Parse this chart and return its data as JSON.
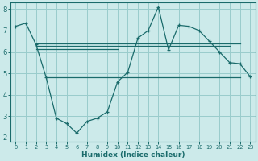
{
  "xlabel": "Humidex (Indice chaleur)",
  "bg_color": "#cceaea",
  "line_color": "#1a6b6b",
  "grid_color": "#99cccc",
  "xlim": [
    -0.5,
    23.5
  ],
  "ylim": [
    1.8,
    8.3
  ],
  "yticks": [
    2,
    3,
    4,
    5,
    6,
    7,
    8
  ],
  "xticks": [
    0,
    1,
    2,
    3,
    4,
    5,
    6,
    7,
    8,
    9,
    10,
    11,
    12,
    13,
    14,
    15,
    16,
    17,
    18,
    19,
    20,
    21,
    22,
    23
  ],
  "line1_x": [
    0,
    1,
    2,
    3,
    4,
    5,
    6,
    7,
    8,
    9,
    10,
    11,
    12,
    13,
    14,
    15,
    16,
    17,
    18,
    19,
    20,
    21,
    22,
    23
  ],
  "line1_y": [
    7.2,
    7.35,
    6.35,
    4.8,
    2.9,
    2.65,
    2.2,
    2.75,
    2.9,
    3.2,
    4.6,
    5.05,
    6.65,
    7.0,
    8.1,
    6.1,
    7.25,
    7.2,
    7.0,
    6.5,
    6.0,
    5.5,
    5.45,
    4.85
  ],
  "hline1_x": [
    2,
    22
  ],
  "hline1_y": [
    6.4,
    6.4
  ],
  "hline2_x": [
    2,
    21
  ],
  "hline2_y": [
    6.3,
    6.3
  ],
  "hline3_x": [
    2,
    10
  ],
  "hline3_y": [
    6.15,
    6.15
  ],
  "hline4_x": [
    3,
    22
  ],
  "hline4_y": [
    4.8,
    4.8
  ]
}
